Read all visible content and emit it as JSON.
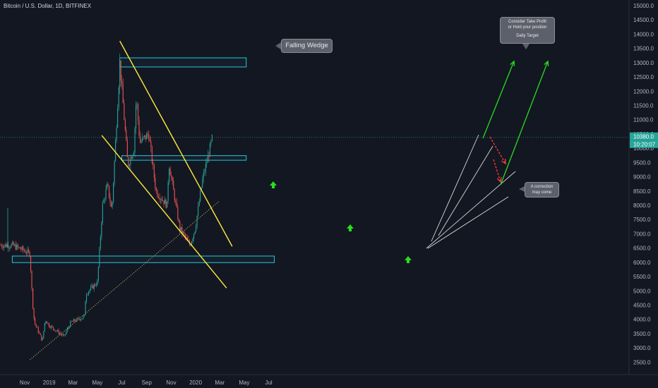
{
  "header": {
    "symbol_label": "Bitcoin / U.S. Dollar, 1D, BITFINEX"
  },
  "annotations": {
    "falling_wedge": "Falling Wedge",
    "take_profit_line1": "Consider Take Profit",
    "take_profit_line2": "or Hold your position",
    "take_profit_line3": "Daily Target",
    "correction_line1": "A correction",
    "correction_line2": "may come"
  },
  "price_badges": {
    "last_price": "10380.0",
    "countdown": "10:20:07"
  },
  "colors": {
    "background": "#131722",
    "up_candle": "#26a69a",
    "down_candle": "#ef5350",
    "wedge_line": "#ffeb3b",
    "zone_box": "#26c6da",
    "target_arrow": "#26e01c",
    "correction_arrow": "#ff3b3b",
    "channel_line": "#d8d8d8",
    "price_badge": "#26a69a"
  },
  "icons": {
    "bounce_markers": "green-up-arrow-icon"
  },
  "chart_data": {
    "type": "candlestick",
    "symbol": "Bitcoin / U.S. Dollar",
    "interval": "1D",
    "exchange": "BITFINEX",
    "x_tick_labels": [
      "Nov",
      "2019",
      "Mar",
      "May",
      "Jul",
      "Sep",
      "Nov",
      "2020",
      "Mar",
      "May",
      "Jul"
    ],
    "y_tick_labels": [
      "2500.0",
      "3000.0",
      "3500.0",
      "4000.0",
      "4500.0",
      "5000.0",
      "5500.0",
      "6000.0",
      "6500.0",
      "7000.0",
      "7500.0",
      "8000.0",
      "8500.0",
      "9000.0",
      "9500.0",
      "10000.0",
      "10500.0",
      "11000.0",
      "11500.0",
      "12000.0",
      "12500.0",
      "13000.0",
      "13500.0",
      "14000.0",
      "14500.0",
      "15000.0"
    ],
    "y_range": [
      2200,
      15200
    ],
    "price_path": [
      [
        "2018-10-01",
        6600
      ],
      [
        "2018-10-25",
        6450
      ],
      [
        "2018-11-14",
        6300
      ],
      [
        "2018-11-20",
        4700
      ],
      [
        "2018-11-25",
        3900
      ],
      [
        "2018-12-15",
        3250
      ],
      [
        "2018-12-22",
        4000
      ],
      [
        "2018-12-31",
        3800
      ],
      [
        "2019-02-07",
        3400
      ],
      [
        "2019-02-24",
        3900
      ],
      [
        "2019-03-31",
        4100
      ],
      [
        "2019-04-02",
        4900
      ],
      [
        "2019-05-01",
        5300
      ],
      [
        "2019-05-14",
        8000
      ],
      [
        "2019-05-26",
        8700
      ],
      [
        "2019-06-06",
        7800
      ],
      [
        "2019-06-26",
        13000
      ],
      [
        "2019-07-16",
        9400
      ],
      [
        "2019-07-31",
        10000
      ],
      [
        "2019-08-06",
        11800
      ],
      [
        "2019-08-15",
        10200
      ],
      [
        "2019-09-06",
        10500
      ],
      [
        "2019-09-24",
        8500
      ],
      [
        "2019-10-22",
        8000
      ],
      [
        "2019-10-26",
        9500
      ],
      [
        "2019-11-22",
        7200
      ],
      [
        "2019-12-18",
        6600
      ],
      [
        "2019-12-31",
        7200
      ],
      [
        "2020-01-18",
        8900
      ],
      [
        "2020-02-12",
        10380
      ]
    ],
    "last_price": 10380.0,
    "horizontal_zones": [
      {
        "low": 12850,
        "high": 13170,
        "from": "2019-06-26",
        "to": "2020-05-06"
      },
      {
        "low": 9580,
        "high": 9740,
        "from": "2019-07-01",
        "to": "2020-05-06"
      },
      {
        "low": 5990,
        "high": 6220,
        "from": "2018-10-01",
        "to": "2020-07-15"
      }
    ],
    "falling_wedge": {
      "upper": [
        [
          "2019-06-26",
          13760
        ],
        [
          "2020-04-01",
          6560
        ]
      ],
      "lower": [
        [
          "2019-05-12",
          10450
        ],
        [
          "2020-03-18",
          5100
        ]
      ]
    },
    "long_term_trendline": [
      [
        "2018-11-14",
        2580
      ],
      [
        "2020-03-01",
        8160
      ]
    ],
    "target_price": 13000,
    "correction_target": 9000
  }
}
